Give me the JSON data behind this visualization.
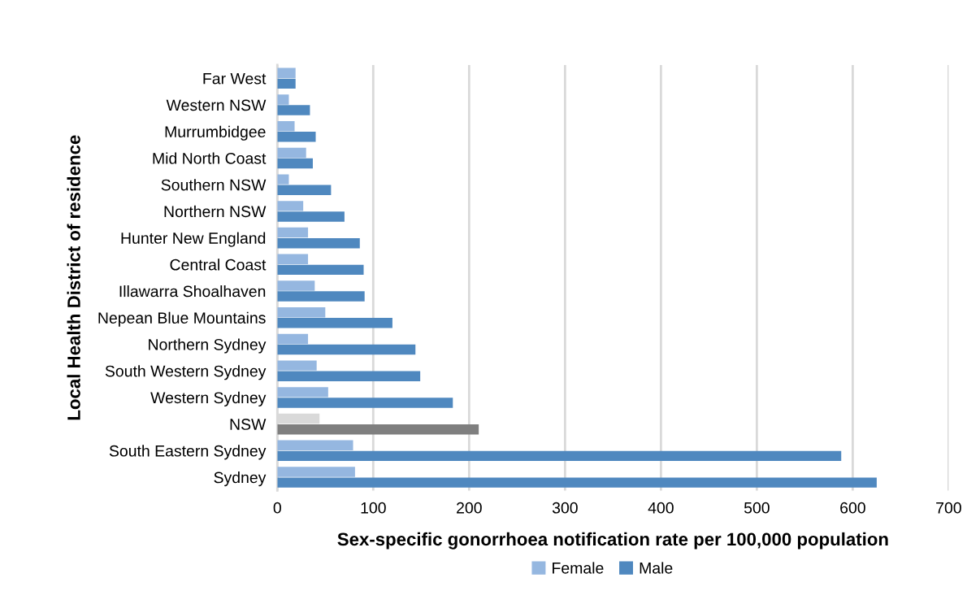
{
  "chart_data": {
    "type": "bar",
    "orientation": "horizontal",
    "categories": [
      "Far West",
      "Western NSW",
      "Murrumbidgee",
      "Mid North Coast",
      "Southern NSW",
      "Northern NSW",
      "Hunter New England",
      "Central Coast",
      "Illawarra Shoalhaven",
      "Nepean Blue Mountains",
      "Northern Sydney",
      "South Western Sydney",
      "Western Sydney",
      "NSW",
      "South Eastern Sydney",
      "Sydney"
    ],
    "series": [
      {
        "name": "Female",
        "color": "#95b7e0",
        "colors": [
          "#95b7e0",
          "#95b7e0",
          "#95b7e0",
          "#95b7e0",
          "#95b7e0",
          "#95b7e0",
          "#95b7e0",
          "#95b7e0",
          "#95b7e0",
          "#95b7e0",
          "#95b7e0",
          "#95b7e0",
          "#95b7e0",
          "#d9d9d9",
          "#95b7e0",
          "#95b7e0"
        ],
        "values": [
          19,
          12,
          18,
          30,
          12,
          27,
          32,
          32,
          39,
          50,
          32,
          41,
          53,
          44,
          79,
          81
        ]
      },
      {
        "name": "Male",
        "color": "#4f88bf",
        "colors": [
          "#4f88bf",
          "#4f88bf",
          "#4f88bf",
          "#4f88bf",
          "#4f88bf",
          "#4f88bf",
          "#4f88bf",
          "#4f88bf",
          "#4f88bf",
          "#4f88bf",
          "#4f88bf",
          "#4f88bf",
          "#4f88bf",
          "#7f7f7f",
          "#4f88bf",
          "#4f88bf"
        ],
        "values": [
          19,
          34,
          40,
          37,
          56,
          70,
          86,
          90,
          91,
          120,
          144,
          149,
          183,
          210,
          588,
          625
        ]
      }
    ],
    "xlabel": "Sex-specific gonorrhoea notification rate per 100,000 population",
    "ylabel": "Local Health District of residence",
    "xlim": [
      0,
      700
    ],
    "xticks": [
      0,
      100,
      200,
      300,
      400,
      500,
      600,
      700
    ],
    "grid": "x",
    "legend": "bottom"
  }
}
